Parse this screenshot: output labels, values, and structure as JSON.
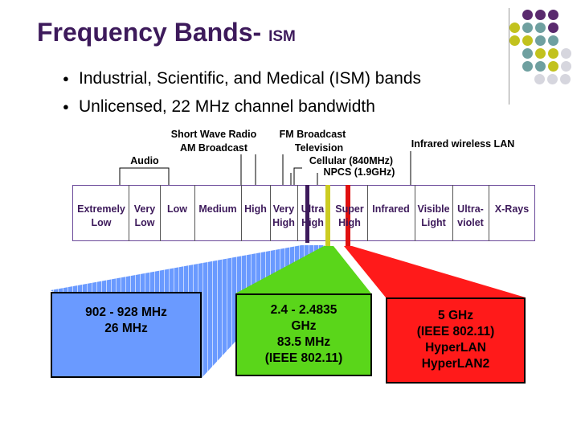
{
  "title": {
    "main": "Frequency Bands-",
    "sub": "ISM"
  },
  "bullets": [
    "Industrial, Scientific, and Medical (ISM) bands",
    "Unlicensed, 22 MHz channel bandwidth"
  ],
  "bands": [
    {
      "line1": "Extremely",
      "line2": "Low"
    },
    {
      "line1": "Very",
      "line2": "Low"
    },
    {
      "line1": "Low",
      "line2": ""
    },
    {
      "line1": "Medium",
      "line2": ""
    },
    {
      "line1": "High",
      "line2": ""
    },
    {
      "line1": "Very",
      "line2": "High"
    },
    {
      "line1": "Ultra",
      "line2": "High"
    },
    {
      "line1": "Super",
      "line2": "High"
    },
    {
      "line1": "Infrared",
      "line2": ""
    },
    {
      "line1": "Visible",
      "line2": "Light"
    },
    {
      "line1": "Ultra-",
      "line2": "violet"
    },
    {
      "line1": "X-Rays",
      "line2": ""
    }
  ],
  "captions": {
    "audio": "Audio",
    "shortwave": "Short Wave Radio",
    "am": "AM Broadcast",
    "fm": "FM Broadcast",
    "tv": "Television",
    "cellular": "Cellular (840MHz)",
    "npcs": "NPCS (1.9GHz)",
    "infrared_lan": "Infrared wireless LAN"
  },
  "boxes": {
    "blue": [
      "902 - 928 MHz",
      "26 MHz"
    ],
    "green": [
      "2.4 - 2.4835",
      "GHz",
      "83.5 MHz",
      "(IEEE 802.11)"
    ],
    "red": [
      "5 GHz",
      "(IEEE 802.11)",
      "HyperLAN",
      "HyperLAN2"
    ]
  },
  "colors": {
    "title": "#3d1a5b",
    "blue_box": "#6a9aff",
    "green_box": "#5ad61a",
    "red_box": "#ff1a1a",
    "marker_purple": "#3d1a5b",
    "marker_yellow": "#cccc22",
    "marker_red": "#e01010",
    "dot_purple": "#5a2a6e",
    "dot_teal": "#6fa0a0",
    "dot_olive": "#c2c21e",
    "dot_gray": "#d6d6de"
  }
}
